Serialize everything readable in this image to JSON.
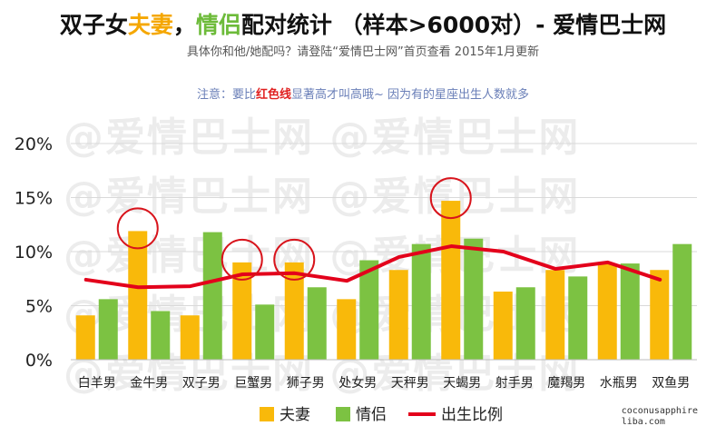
{
  "header": {
    "title_part1": "双子女",
    "title_part2": "夫妻",
    "title_part3": "，",
    "title_part4": "情侣",
    "title_part5": "配对统计 （样本>6000对）- 爱情巴士网",
    "subtitle": "具体你和他/她配吗？请登陆“爱情巴士网”首页查看  2015年1月更新",
    "note_part1": "注意：要比",
    "note_part2": "红色线",
    "note_part3": "显著高才叫高哦~ 因为有的星座出生人数就多"
  },
  "watermark": "@爱情巴士网",
  "credit": {
    "line1": "coconusapphire",
    "line2": "liba.com"
  },
  "colors": {
    "couple": "#f9b90a",
    "lovers": "#7cc242",
    "birth": "#e3001b",
    "circle": "#d8141c"
  },
  "chart_data": {
    "type": "bar",
    "title": "双子女夫妻，情侣配对统计 （样本>6000对）- 爱情巴士网",
    "categories": [
      "白羊男",
      "金牛男",
      "双子男",
      "巨蟹男",
      "狮子男",
      "处女男",
      "天秤男",
      "天蝎男",
      "射手男",
      "魔羯男",
      "水瓶男",
      "双鱼男"
    ],
    "series": [
      {
        "name": "夫妻",
        "type": "bar",
        "values": [
          4.1,
          11.9,
          4.1,
          9.0,
          9.0,
          5.6,
          8.3,
          14.7,
          6.3,
          8.3,
          8.9,
          8.3
        ]
      },
      {
        "name": "情侣",
        "type": "bar",
        "values": [
          5.6,
          4.5,
          11.8,
          5.1,
          6.7,
          9.2,
          10.7,
          11.2,
          6.7,
          7.7,
          8.9,
          10.7
        ]
      },
      {
        "name": "出生比例",
        "type": "line",
        "values": [
          7.4,
          6.7,
          6.8,
          7.9,
          8.0,
          7.3,
          9.5,
          10.5,
          10.0,
          8.4,
          9.0,
          7.4
        ]
      }
    ],
    "highlighted_categories": [
      "金牛男",
      "巨蟹男",
      "狮子男",
      "天蝎男"
    ],
    "y_ticks": [
      "0%",
      "5%",
      "10%",
      "15%",
      "20%"
    ],
    "ylim": [
      0,
      20
    ],
    "grid": true,
    "legend": "bottom"
  }
}
